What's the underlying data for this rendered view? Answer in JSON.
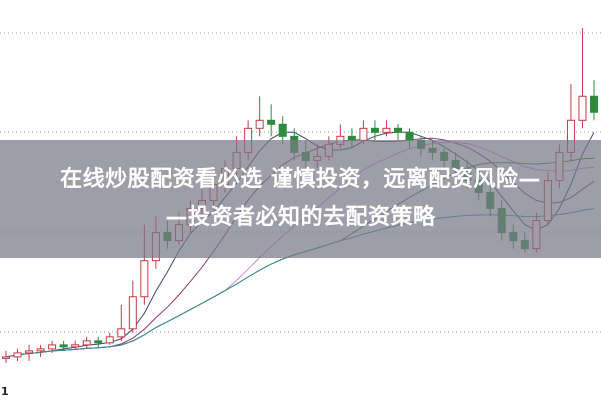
{
  "banner": {
    "line1": "在线炒股配资看必选 谨慎投资，远离配资风险—",
    "line2": "—投资者必知的去配资策略"
  },
  "corner_label": "1",
  "chart_data": {
    "type": "candlestick",
    "title": "",
    "xlabel": "",
    "ylabel": "",
    "ylim": [
      0,
      100
    ],
    "grid": "horizontal dotted",
    "candles": [
      [
        11,
        12.5,
        9.5,
        11
      ],
      [
        11,
        13,
        10,
        12
      ],
      [
        12,
        14,
        10,
        12.5
      ],
      [
        12.5,
        14,
        11,
        13
      ],
      [
        13,
        15,
        12,
        14
      ],
      [
        14,
        15,
        12.5,
        13.5
      ],
      [
        13.5,
        15,
        13,
        14
      ],
      [
        14,
        16,
        13,
        15
      ],
      [
        15,
        16,
        13.5,
        14.5
      ],
      [
        14.5,
        17,
        14,
        16
      ],
      [
        16,
        24,
        15,
        18
      ],
      [
        18,
        30,
        17,
        26
      ],
      [
        26,
        44,
        24,
        35
      ],
      [
        35,
        46,
        33,
        42
      ],
      [
        42,
        45,
        38,
        40
      ],
      [
        40,
        47,
        39,
        44
      ],
      [
        44,
        50,
        42,
        48
      ],
      [
        48,
        55,
        46,
        50
      ],
      [
        50,
        56,
        48,
        54
      ],
      [
        54,
        60,
        52,
        58
      ],
      [
        58,
        66,
        56,
        62
      ],
      [
        62,
        70,
        60,
        68
      ],
      [
        68,
        76,
        66,
        70
      ],
      [
        70,
        74,
        66,
        69
      ],
      [
        69,
        71,
        64,
        66
      ],
      [
        66,
        68,
        60,
        62
      ],
      [
        62,
        65,
        58,
        60
      ],
      [
        60,
        64,
        58,
        61
      ],
      [
        61,
        66,
        60,
        64
      ],
      [
        64,
        69,
        63,
        66
      ],
      [
        66,
        68,
        63,
        65
      ],
      [
        65,
        70,
        64,
        68
      ],
      [
        68,
        70,
        65,
        67
      ],
      [
        67,
        70,
        66,
        68
      ],
      [
        68,
        69,
        65,
        67
      ],
      [
        67,
        68,
        63,
        65
      ],
      [
        65,
        66,
        61,
        63
      ],
      [
        63,
        65,
        60,
        62
      ],
      [
        62,
        63,
        58,
        60
      ],
      [
        60,
        62,
        56,
        58
      ],
      [
        58,
        60,
        53,
        55
      ],
      [
        55,
        57,
        50,
        52
      ],
      [
        52,
        54,
        46,
        48
      ],
      [
        48,
        50,
        40,
        42
      ],
      [
        42,
        44,
        38,
        40
      ],
      [
        40,
        42,
        37,
        38
      ],
      [
        38,
        47,
        37,
        45
      ],
      [
        45,
        57,
        44,
        55
      ],
      [
        55,
        64,
        53,
        62
      ],
      [
        62,
        79,
        60,
        70
      ],
      [
        70,
        93,
        68,
        76
      ],
      [
        76,
        80,
        70,
        72
      ]
    ],
    "colors": {
      "up": "#c23a45",
      "down": "#2e8b3e",
      "ma": [
        "#3b4a6b",
        "#8a3c7a",
        "#d08ad6",
        "#3e7f3e",
        "#3a8c99"
      ]
    },
    "moving_averages": [
      5,
      10,
      20,
      30,
      60
    ]
  }
}
